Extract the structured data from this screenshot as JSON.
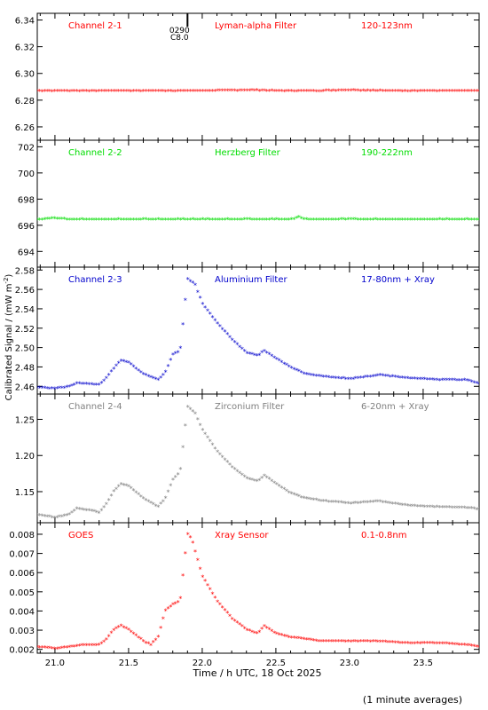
{
  "chart_data": {
    "type": "scatter",
    "xlabel": "Time / h UTC, 18 Oct 2025",
    "ylabel": "Calibrated Signal / (mW m",
    "ylabel_sup": "-2",
    "ylabel_close": ")",
    "footnote": "(1 minute averages)",
    "xlim": [
      20.88,
      23.88
    ],
    "xticks": [
      "21.0",
      "21.5",
      "22.0",
      "22.5",
      "23.0",
      "23.5"
    ],
    "marker_flag": {
      "label_a": "0290",
      "label_b": "C8.0",
      "x": 21.9
    },
    "panels": [
      {
        "channel": "Channel 2-1",
        "filter": "Lyman-alpha Filter",
        "band": "120-123nm",
        "color": "#ff0000",
        "ylim": [
          6.25,
          6.345
        ],
        "yticks": [
          "6.26",
          "6.28",
          "6.30",
          "6.32",
          "6.34"
        ],
        "x": [
          20.9,
          21.5,
          22.0,
          22.35,
          22.5,
          22.8,
          23.0,
          23.3,
          23.6,
          23.88
        ],
        "y": [
          6.2865,
          6.2865,
          6.2865,
          6.287,
          6.2865,
          6.2865,
          6.287,
          6.2865,
          6.2865,
          6.2865
        ]
      },
      {
        "channel": "Channel 2-2",
        "filter": "Herzberg Filter",
        "band": "190-222nm",
        "color": "#00dd00",
        "ylim": [
          692.8,
          702.5
        ],
        "yticks": [
          "694",
          "696",
          "698",
          "700",
          "702"
        ],
        "x": [
          20.9,
          21.0,
          21.1,
          21.5,
          22.0,
          22.5,
          22.62,
          22.65,
          22.7,
          23.0,
          23.5,
          23.88
        ],
        "y": [
          696.4,
          696.5,
          696.4,
          696.4,
          696.4,
          696.4,
          696.4,
          696.6,
          696.4,
          696.4,
          696.4,
          696.4
        ]
      },
      {
        "channel": "Channel 2-3",
        "filter": "Aluminium Filter",
        "band": "17-80nm + Xray",
        "color": "#0000cc",
        "ylim": [
          2.452,
          2.583
        ],
        "yticks": [
          "2.46",
          "2.48",
          "2.50",
          "2.52",
          "2.54",
          "2.56",
          "2.58"
        ],
        "x": [
          20.9,
          21.0,
          21.1,
          21.15,
          21.2,
          21.3,
          21.35,
          21.4,
          21.45,
          21.5,
          21.6,
          21.7,
          21.75,
          21.8,
          21.85,
          21.9,
          21.95,
          22.0,
          22.1,
          22.2,
          22.3,
          22.38,
          22.42,
          22.5,
          22.6,
          22.7,
          22.8,
          23.0,
          23.2,
          23.4,
          23.6,
          23.8,
          23.88
        ],
        "y": [
          2.458,
          2.457,
          2.459,
          2.463,
          2.462,
          2.461,
          2.468,
          2.478,
          2.486,
          2.484,
          2.472,
          2.466,
          2.474,
          2.492,
          2.496,
          2.57,
          2.565,
          2.545,
          2.525,
          2.508,
          2.494,
          2.491,
          2.496,
          2.488,
          2.479,
          2.472,
          2.47,
          2.467,
          2.471,
          2.468,
          2.466,
          2.466,
          2.462
        ]
      },
      {
        "channel": "Channel 2-4",
        "filter": "Zirconium Filter",
        "band": "6-20nm + Xray",
        "color": "#808080",
        "ylim": [
          1.107,
          1.285
        ],
        "yticks": [
          "1.15",
          "1.20",
          "1.25"
        ],
        "x": [
          20.9,
          21.0,
          21.1,
          21.15,
          21.25,
          21.3,
          21.35,
          21.4,
          21.45,
          21.5,
          21.6,
          21.7,
          21.75,
          21.8,
          21.85,
          21.9,
          21.95,
          22.0,
          22.1,
          22.2,
          22.3,
          22.38,
          22.42,
          22.5,
          22.6,
          22.7,
          22.8,
          23.0,
          23.2,
          23.4,
          23.6,
          23.8,
          23.88
        ],
        "y": [
          1.117,
          1.113,
          1.118,
          1.126,
          1.123,
          1.12,
          1.132,
          1.15,
          1.16,
          1.157,
          1.14,
          1.128,
          1.14,
          1.165,
          1.177,
          1.267,
          1.258,
          1.235,
          1.205,
          1.184,
          1.168,
          1.163,
          1.172,
          1.16,
          1.147,
          1.14,
          1.137,
          1.133,
          1.136,
          1.13,
          1.128,
          1.127,
          1.125
        ]
      },
      {
        "channel": "GOES",
        "filter": "Xray Sensor",
        "band": "0.1-0.8nm",
        "color": "#ff0000",
        "ylim": [
          0.0018,
          0.0086
        ],
        "yticks": [
          "0.002",
          "0.003",
          "0.004",
          "0.005",
          "0.006",
          "0.007",
          "0.008"
        ],
        "x": [
          20.9,
          21.0,
          21.1,
          21.2,
          21.3,
          21.35,
          21.4,
          21.45,
          21.5,
          21.6,
          21.65,
          21.7,
          21.75,
          21.8,
          21.85,
          21.9,
          21.93,
          22.0,
          22.1,
          22.2,
          22.3,
          22.38,
          22.42,
          22.5,
          22.6,
          22.7,
          22.8,
          23.0,
          23.2,
          23.4,
          23.6,
          23.8,
          23.88
        ],
        "y": [
          0.0021,
          0.002,
          0.0021,
          0.0022,
          0.0022,
          0.0025,
          0.003,
          0.0032,
          0.003,
          0.0024,
          0.0022,
          0.0026,
          0.004,
          0.0043,
          0.0045,
          0.008,
          0.0077,
          0.0058,
          0.0045,
          0.0036,
          0.003,
          0.0028,
          0.0032,
          0.0028,
          0.0026,
          0.0025,
          0.0024,
          0.0024,
          0.0024,
          0.0023,
          0.0023,
          0.0022,
          0.0021
        ]
      }
    ]
  }
}
